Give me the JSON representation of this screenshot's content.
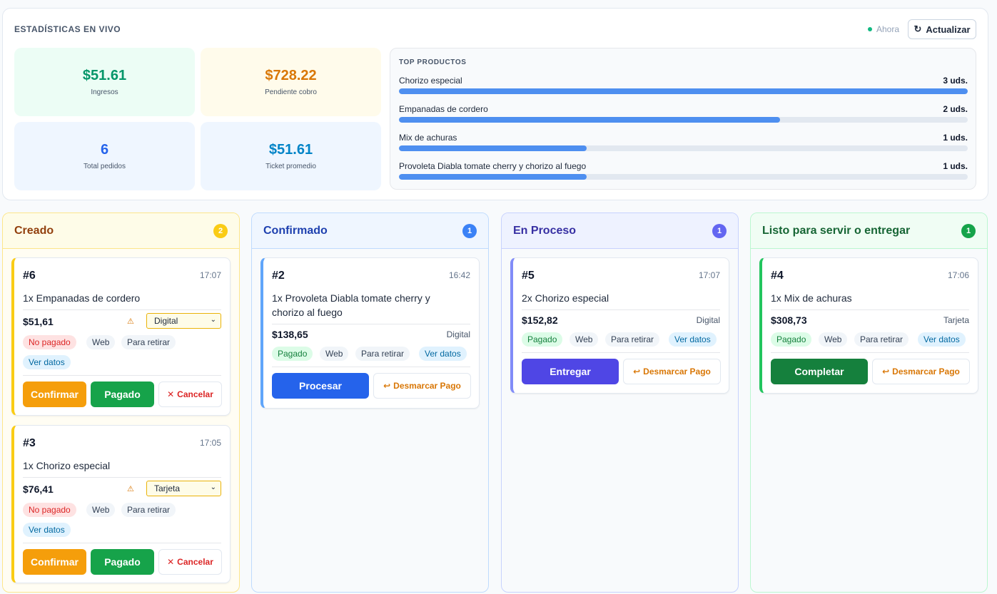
{
  "stats": {
    "title": "ESTADÍSTICAS EN VIVO",
    "live_label": "Ahora",
    "refresh_label": "Actualizar",
    "kpis": [
      {
        "value": "$51.61",
        "label": "Ingresos"
      },
      {
        "value": "$728.22",
        "label": "Pendiente cobro"
      },
      {
        "value": "6",
        "label": "Total pedidos"
      },
      {
        "value": "$51.61",
        "label": "Ticket promedio"
      }
    ],
    "top_title": "TOP PRODUCTOS",
    "top_products": [
      {
        "name": "Chorizo especial",
        "qty": "3 uds.",
        "share": 1.0
      },
      {
        "name": "Empanadas de cordero",
        "qty": "2 uds.",
        "share": 0.67
      },
      {
        "name": "Mix de achuras",
        "qty": "1 uds.",
        "share": 0.33
      },
      {
        "name": "Provoleta Diabla tomate cherry y chorizo al fuego",
        "qty": "1 uds.",
        "share": 0.33
      }
    ]
  },
  "colors": {
    "accent_blue": "#2563eb",
    "accent_green": "#16a34a",
    "accent_orange": "#f59e0b",
    "accent_indigo": "#4f46e5"
  },
  "columns": [
    {
      "title": "Creado",
      "count": "2",
      "orders": [
        {
          "id": "#6",
          "time": "17:07",
          "item": "1x Empanadas de cordero",
          "price": "$51,61",
          "payment": "Digital",
          "tags": [
            "No pagado",
            "Web",
            "Para retirar",
            "Ver datos"
          ],
          "buttons": [
            "Confirmar",
            "Pagado",
            "Cancelar"
          ]
        },
        {
          "id": "#3",
          "time": "17:05",
          "item": "1x Chorizo especial",
          "price": "$76,41",
          "payment": "Tarjeta",
          "tags": [
            "No pagado",
            "Web",
            "Para retirar",
            "Ver datos"
          ],
          "buttons": [
            "Confirmar",
            "Pagado",
            "Cancelar"
          ]
        }
      ]
    },
    {
      "title": "Confirmado",
      "count": "1",
      "orders": [
        {
          "id": "#2",
          "time": "16:42",
          "item": "1x Provoleta Diabla tomate cherry y chorizo al fuego",
          "price": "$138,65",
          "payment": "Digital",
          "tags": [
            "Pagado",
            "Web",
            "Para retirar",
            "Ver datos"
          ],
          "buttons": [
            "Procesar",
            "Desmarcar Pago"
          ]
        }
      ]
    },
    {
      "title": "En Proceso",
      "count": "1",
      "orders": [
        {
          "id": "#5",
          "time": "17:07",
          "item": "2x Chorizo especial",
          "price": "$152,82",
          "payment": "Digital",
          "tags": [
            "Pagado",
            "Web",
            "Para retirar",
            "Ver datos"
          ],
          "buttons": [
            "Entregar",
            "Desmarcar Pago"
          ]
        }
      ]
    },
    {
      "title": "Listo para servir o entregar",
      "count": "1",
      "orders": [
        {
          "id": "#4",
          "time": "17:06",
          "item": "1x Mix de achuras",
          "price": "$308,73",
          "payment": "Tarjeta",
          "tags": [
            "Pagado",
            "Web",
            "Para retirar",
            "Ver datos"
          ],
          "buttons": [
            "Completar",
            "Desmarcar Pago"
          ]
        }
      ]
    }
  ],
  "icons": {
    "refresh": "refresh-icon",
    "warning": "warning-icon",
    "cancel": "x-icon",
    "undo": "undo-icon",
    "live": "status-dot-icon"
  }
}
